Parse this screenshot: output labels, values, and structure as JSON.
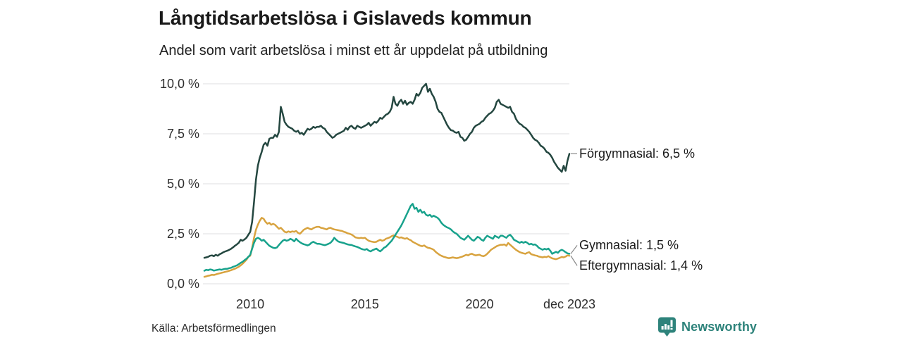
{
  "title": "Långtidsarbetslösa i Gislaveds kommun",
  "subtitle": "Andel som varit arbetslösa i minst ett år uppdelat på utbildning",
  "source": "Källa: Arbetsförmedlingen",
  "brand": {
    "name": "Newsworthy",
    "color": "#2e837b"
  },
  "colors": {
    "gridline": "#e5e5e8",
    "connector": "#8a8a8a",
    "title_text": "#1a1a1a",
    "axis_text": "#2e2e2e"
  },
  "chart_data": {
    "type": "line",
    "title": "Långtidsarbetslösa i Gislaveds kommun",
    "subtitle": "Andel som varit arbetslösa i minst ett år uppdelat på utbildning",
    "x_start": "2008-01",
    "x_end": "2023-12",
    "x_interval": "monthly",
    "x_tick_labels": [
      "2010",
      "2015",
      "2020",
      "dec 2023"
    ],
    "x_tick_positions": [
      24,
      84,
      144,
      191
    ],
    "y_tick_labels": [
      "10,0 %",
      "7,5 %",
      "5,0 %",
      "2,5 %",
      "0,0 %"
    ],
    "y_tick_values": [
      10,
      7.5,
      5,
      2.5,
      0
    ],
    "ylim": [
      0,
      10
    ],
    "grid": "horizontal",
    "legend_position": "end-of-line-labels",
    "series": [
      {
        "name": "Förgymnasial",
        "label": "Förgymnasial: 6,5 %",
        "last_value_text": "6,5 %",
        "color": "#244740",
        "values": [
          1.3,
          1.32,
          1.35,
          1.4,
          1.42,
          1.38,
          1.45,
          1.4,
          1.48,
          1.52,
          1.58,
          1.62,
          1.65,
          1.7,
          1.75,
          1.82,
          1.9,
          1.97,
          2.05,
          2.2,
          2.15,
          2.22,
          2.3,
          2.45,
          2.6,
          3.1,
          4.1,
          5.2,
          5.9,
          6.3,
          6.6,
          6.95,
          7.05,
          6.9,
          7.25,
          7.3,
          7.3,
          7.45,
          7.35,
          7.6,
          8.85,
          8.5,
          8.1,
          7.95,
          7.85,
          7.8,
          7.75,
          7.65,
          7.6,
          7.65,
          7.5,
          7.55,
          7.45,
          7.6,
          7.75,
          7.7,
          7.75,
          7.85,
          7.8,
          7.85,
          7.85,
          7.9,
          7.8,
          7.75,
          7.6,
          7.5,
          7.4,
          7.3,
          7.35,
          7.45,
          7.5,
          7.55,
          7.6,
          7.65,
          7.8,
          7.7,
          7.85,
          7.9,
          7.8,
          7.75,
          7.9,
          7.85,
          7.8,
          7.85,
          7.9,
          7.95,
          8.05,
          7.9,
          8.0,
          8.1,
          8.05,
          8.15,
          8.3,
          8.25,
          8.35,
          8.45,
          8.5,
          8.6,
          8.8,
          9.35,
          9.0,
          8.9,
          9.1,
          9.2,
          9.0,
          9.15,
          8.95,
          9.05,
          9.1,
          9.0,
          9.2,
          9.5,
          9.4,
          9.55,
          9.8,
          9.9,
          10.0,
          9.6,
          9.75,
          9.5,
          9.35,
          9.1,
          8.75,
          8.6,
          8.55,
          8.35,
          8.15,
          7.95,
          7.8,
          7.68,
          7.66,
          7.58,
          7.55,
          7.6,
          7.35,
          7.3,
          7.15,
          7.2,
          7.35,
          7.5,
          7.6,
          7.8,
          7.9,
          7.95,
          8.0,
          8.1,
          8.15,
          8.3,
          8.4,
          8.5,
          8.55,
          8.65,
          8.8,
          9.1,
          9.2,
          9.0,
          8.95,
          8.9,
          8.85,
          8.8,
          8.85,
          8.6,
          8.5,
          8.25,
          8.1,
          8.0,
          7.95,
          7.85,
          7.8,
          7.7,
          7.6,
          7.45,
          7.3,
          7.2,
          7.15,
          7.05,
          6.9,
          6.85,
          6.75,
          6.6,
          6.55,
          6.45,
          6.3,
          6.1,
          5.95,
          5.8,
          5.7,
          5.6,
          5.9,
          5.65,
          6.15,
          6.5
        ]
      },
      {
        "name": "Gymnasial",
        "label": "Gymnasial: 1,5 %",
        "last_value_text": "1,5 %",
        "color": "#18a28c",
        "values": [
          0.65,
          0.7,
          0.68,
          0.72,
          0.7,
          0.66,
          0.68,
          0.7,
          0.72,
          0.7,
          0.73,
          0.75,
          0.75,
          0.78,
          0.8,
          0.85,
          0.88,
          0.92,
          0.98,
          1.05,
          1.1,
          1.18,
          1.25,
          1.35,
          1.45,
          1.75,
          2.05,
          2.25,
          2.3,
          2.25,
          2.15,
          2.2,
          2.1,
          2.0,
          1.9,
          1.85,
          1.8,
          1.78,
          1.82,
          1.94,
          2.05,
          2.15,
          2.2,
          2.15,
          2.18,
          2.25,
          2.2,
          2.12,
          2.25,
          2.15,
          2.08,
          2.02,
          1.98,
          1.95,
          1.92,
          1.96,
          2.05,
          2.1,
          2.05,
          2.0,
          2.0,
          1.98,
          1.95,
          1.93,
          1.96,
          2.0,
          2.05,
          2.15,
          2.3,
          2.2,
          2.12,
          2.08,
          2.06,
          2.04,
          2.0,
          1.97,
          1.95,
          1.94,
          1.9,
          1.87,
          1.84,
          1.8,
          1.75,
          1.72,
          1.7,
          1.74,
          1.66,
          1.62,
          1.68,
          1.72,
          1.76,
          1.68,
          1.62,
          1.7,
          1.8,
          1.85,
          1.95,
          2.05,
          2.15,
          2.3,
          2.45,
          2.6,
          2.75,
          2.9,
          3.1,
          3.3,
          3.5,
          3.7,
          3.9,
          4.0,
          3.75,
          3.8,
          3.6,
          3.7,
          3.55,
          3.6,
          3.45,
          3.4,
          3.45,
          3.35,
          3.4,
          3.35,
          3.3,
          3.2,
          3.05,
          2.95,
          2.88,
          2.82,
          2.78,
          2.72,
          2.62,
          2.55,
          2.5,
          2.4,
          2.3,
          2.25,
          2.2,
          2.3,
          2.4,
          2.3,
          2.2,
          2.15,
          2.25,
          2.35,
          2.3,
          2.2,
          2.15,
          2.3,
          2.4,
          2.35,
          2.3,
          2.25,
          2.4,
          2.35,
          2.3,
          2.4,
          2.4,
          2.35,
          2.3,
          2.4,
          2.45,
          2.35,
          2.2,
          2.15,
          2.1,
          2.05,
          2.1,
          2.05,
          2.1,
          2.05,
          1.97,
          2.0,
          1.95,
          1.97,
          1.9,
          1.8,
          1.75,
          1.7,
          1.75,
          1.72,
          1.76,
          1.65,
          1.5,
          1.55,
          1.6,
          1.55,
          1.65,
          1.7,
          1.65,
          1.58,
          1.52,
          1.5
        ]
      },
      {
        "name": "Eftergymnasial",
        "label": "Eftergymnasial: 1,4 %",
        "last_value_text": "1,4 %",
        "color": "#d8a33f",
        "values": [
          0.35,
          0.37,
          0.4,
          0.42,
          0.45,
          0.44,
          0.47,
          0.5,
          0.52,
          0.55,
          0.57,
          0.6,
          0.62,
          0.65,
          0.68,
          0.72,
          0.75,
          0.8,
          0.85,
          0.92,
          1.0,
          1.1,
          1.2,
          1.35,
          1.4,
          1.8,
          2.3,
          2.7,
          2.95,
          3.15,
          3.3,
          3.25,
          3.1,
          3.0,
          3.05,
          2.95,
          3.0,
          2.95,
          2.85,
          2.75,
          2.8,
          2.7,
          2.6,
          2.57,
          2.62,
          2.58,
          2.62,
          2.6,
          2.64,
          2.55,
          2.5,
          2.6,
          2.7,
          2.75,
          2.8,
          2.75,
          2.72,
          2.78,
          2.82,
          2.85,
          2.85,
          2.8,
          2.78,
          2.75,
          2.72,
          2.78,
          2.8,
          2.75,
          2.72,
          2.7,
          2.68,
          2.66,
          2.64,
          2.6,
          2.57,
          2.52,
          2.5,
          2.46,
          2.4,
          2.32,
          2.3,
          2.28,
          2.3,
          2.28,
          2.3,
          2.22,
          2.15,
          2.12,
          2.1,
          2.08,
          2.1,
          2.15,
          2.2,
          2.15,
          2.18,
          2.25,
          2.28,
          2.32,
          2.38,
          2.42,
          2.38,
          2.35,
          2.3,
          2.32,
          2.28,
          2.25,
          2.28,
          2.22,
          2.18,
          2.1,
          2.05,
          2.0,
          1.95,
          1.9,
          1.88,
          1.92,
          1.85,
          1.8,
          1.78,
          1.75,
          1.7,
          1.6,
          1.52,
          1.45,
          1.4,
          1.36,
          1.33,
          1.3,
          1.28,
          1.3,
          1.32,
          1.3,
          1.28,
          1.3,
          1.33,
          1.36,
          1.4,
          1.45,
          1.42,
          1.48,
          1.5,
          1.45,
          1.42,
          1.44,
          1.45,
          1.4,
          1.38,
          1.42,
          1.5,
          1.6,
          1.7,
          1.76,
          1.82,
          1.88,
          1.92,
          1.95,
          1.95,
          1.97,
          1.9,
          2.04,
          1.95,
          1.87,
          1.78,
          1.7,
          1.64,
          1.58,
          1.55,
          1.52,
          1.5,
          1.55,
          1.58,
          1.48,
          1.45,
          1.42,
          1.4,
          1.36,
          1.34,
          1.32,
          1.35,
          1.33,
          1.38,
          1.32,
          1.27,
          1.25,
          1.23,
          1.26,
          1.3,
          1.34,
          1.32,
          1.36,
          1.42,
          1.4
        ]
      }
    ]
  }
}
